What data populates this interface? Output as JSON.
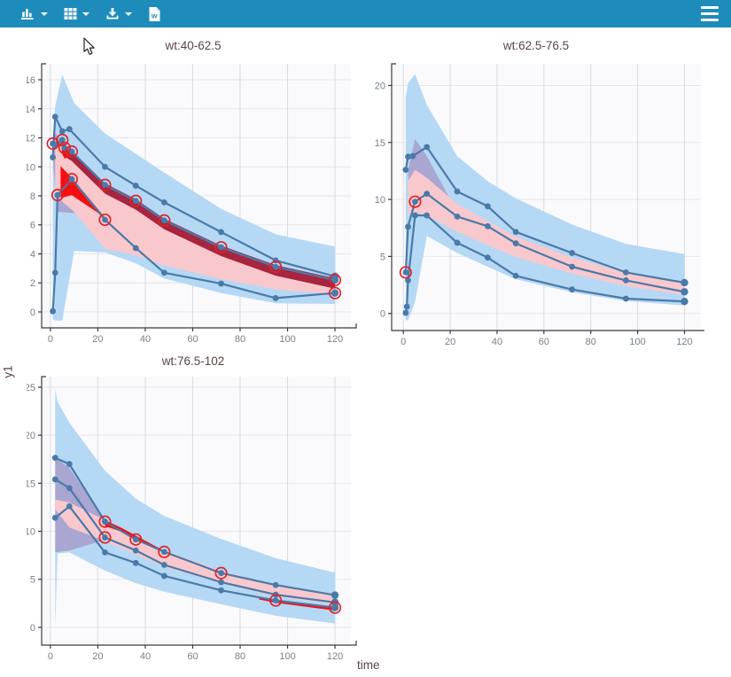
{
  "toolbar": {
    "background": "#1e8cba",
    "buttons": [
      {
        "name": "plot-settings",
        "icon": "bar-chart-icon",
        "has_caret": true
      },
      {
        "name": "table-layout",
        "icon": "grid-icon",
        "has_caret": true
      },
      {
        "name": "download",
        "icon": "download-icon",
        "has_caret": true
      },
      {
        "name": "export-word",
        "icon": "word-file-icon",
        "has_caret": false
      }
    ],
    "menu": {
      "icon": "hamburger-icon"
    }
  },
  "axis_labels": {
    "x": "time",
    "y": "y1"
  },
  "palette": {
    "sim_band_blue": "#b5d8f5",
    "overlap_band_lavender": "#a9a6d2",
    "median_band_pink": "#f9c8cd",
    "obs_median_ci_crimson": "#a8243f",
    "outlier_red": "#f60d10",
    "line_blue": "#4a7aa8",
    "outlier_circle_red": "#e02228",
    "panel_bg": "#fafafd",
    "grid_v": "#d9dae0",
    "grid_h": "#e6e6eb",
    "axis_line": "#3b3b3b",
    "tick_label": "#74808c"
  },
  "chart_data": [
    {
      "type": "line",
      "title": "wt:40-62.5",
      "xlabel": "time",
      "ylabel": "y1",
      "xlim": [
        -3.7,
        126.7
      ],
      "ylim": [
        -1.1,
        17.1
      ],
      "xticks": [
        0,
        20,
        40,
        60,
        80,
        100,
        120
      ],
      "yticks": [
        0,
        2,
        4,
        6,
        8,
        10,
        12,
        14,
        16
      ],
      "bands": [
        {
          "name": "sim-outer-band",
          "color": "#b5d8f5",
          "x": [
            1,
            2,
            5,
            10,
            23,
            36,
            48,
            72,
            95,
            120
          ],
          "hi": [
            11.7,
            14.2,
            16.35,
            14.4,
            12.3,
            10.9,
            9.6,
            7.1,
            5.35,
            4.5
          ],
          "lo": [
            -0.5,
            -0.6,
            -0.6,
            4.2,
            4.1,
            3.35,
            2.3,
            1.3,
            0.6,
            0.55
          ]
        },
        {
          "name": "sim-overlap-band",
          "color": "#a9a6d2",
          "poly": [
            [
              1,
              12.1
            ],
            [
              2,
              12.35
            ],
            [
              5,
              11.7
            ],
            [
              10,
              10.5
            ],
            [
              20,
              7.3
            ],
            [
              10,
              6.8
            ],
            [
              3,
              6.9
            ],
            [
              1,
              10.5
            ]
          ]
        },
        {
          "name": "sim-median-band",
          "color": "#f9c8cd",
          "x": [
            2,
            5,
            10,
            23,
            36,
            48,
            72,
            95,
            120
          ],
          "hi": [
            11.2,
            11.5,
            10.7,
            8.5,
            7.4,
            6.1,
            4.3,
            3.1,
            2.35
          ],
          "lo": [
            8.2,
            7.6,
            6.9,
            4.35,
            3.9,
            3.2,
            2.25,
            1.55,
            1.2
          ]
        },
        {
          "name": "obs-median-ci-band",
          "color": "#a8243f",
          "x": [
            5,
            6,
            9,
            23,
            36,
            48,
            72,
            95,
            120
          ],
          "hi": [
            11.62,
            11.42,
            11.12,
            8.87,
            7.77,
            6.42,
            4.57,
            3.22,
            2.32
          ],
          "lo": [
            10.9,
            10.7,
            10.4,
            8.15,
            7.05,
            5.7,
            3.85,
            2.5,
            1.6
          ]
        },
        {
          "name": "outlier-area",
          "color": "#f60d10",
          "poly": [
            [
              4.3,
              10.05
            ],
            [
              9,
              9.25
            ],
            [
              23,
              6.5
            ],
            [
              9,
              8.05
            ],
            [
              4.3,
              7.85
            ]
          ]
        },
        {
          "name": "outlier-area",
          "color": "#f60d10",
          "poly": [
            [
              4.8,
              11.55
            ],
            [
              8,
              11.15
            ],
            [
              9,
              10.85
            ],
            [
              6,
              10.55
            ],
            [
              4.8,
              10.95
            ]
          ]
        }
      ],
      "series": [
        {
          "name": "p95-percentile",
          "x": [
            1,
            2,
            5,
            8,
            23,
            36,
            48,
            72,
            95,
            120
          ],
          "y": [
            10.65,
            13.45,
            12.45,
            12.6,
            10.0,
            8.7,
            7.55,
            5.5,
            3.55,
            2.45
          ]
        },
        {
          "name": "p50-percentile",
          "x": [
            1,
            2,
            5,
            6,
            9,
            23,
            36,
            48,
            72,
            95,
            120
          ],
          "y": [
            11.6,
            11.5,
            11.85,
            11.3,
            11.05,
            8.75,
            7.65,
            6.3,
            4.45,
            3.1,
            2.2
          ]
        },
        {
          "name": "p5-percentile",
          "x": [
            1,
            2,
            3,
            9,
            23,
            36,
            48,
            72,
            95,
            120
          ],
          "y": [
            0.05,
            2.7,
            8.05,
            9.15,
            6.35,
            4.4,
            2.7,
            1.95,
            0.95,
            1.3
          ]
        }
      ],
      "outlier_circles": [
        [
          1,
          11.6
        ],
        [
          5,
          11.85
        ],
        [
          6,
          11.3
        ],
        [
          9,
          11.05
        ],
        [
          3,
          8.05
        ],
        [
          9,
          9.15
        ],
        [
          23,
          8.75
        ],
        [
          23,
          6.35
        ],
        [
          36,
          7.65
        ],
        [
          48,
          6.3
        ],
        [
          72,
          4.45
        ],
        [
          95,
          3.1
        ],
        [
          120,
          2.2
        ],
        [
          120,
          1.3
        ]
      ]
    },
    {
      "type": "line",
      "title": "wt:62.5-76.5",
      "xlabel": "time",
      "ylabel": "y1",
      "xlim": [
        -5,
        127
      ],
      "ylim": [
        -1.5,
        21.9
      ],
      "xticks": [
        0,
        20,
        40,
        60,
        80,
        100,
        120
      ],
      "yticks": [
        0,
        5,
        10,
        15,
        20
      ],
      "bands": [
        {
          "name": "sim-outer-band",
          "color": "#b5d8f5",
          "x": [
            1,
            2,
            5,
            10,
            23,
            36,
            48,
            72,
            95,
            120
          ],
          "hi": [
            19.0,
            20.2,
            21.0,
            18.3,
            13.8,
            11.6,
            10.1,
            7.8,
            6.1,
            5.2
          ],
          "lo": [
            -0.6,
            -0.6,
            1.0,
            6.8,
            5.3,
            4.1,
            3.0,
            1.85,
            1.1,
            0.7
          ]
        },
        {
          "name": "sim-overlap-band",
          "color": "#a9a6d2",
          "poly": [
            [
              2,
              12.6
            ],
            [
              5,
              15.3
            ],
            [
              10,
              13.8
            ],
            [
              23,
              8.9
            ],
            [
              10,
              8.6
            ],
            [
              3,
              9.3
            ]
          ]
        },
        {
          "name": "sim-median-band",
          "color": "#f9c8cd",
          "x": [
            2,
            5,
            10,
            23,
            36,
            48,
            72,
            95,
            120
          ],
          "hi": [
            11.6,
            12.6,
            11.9,
            9.6,
            8.1,
            6.75,
            4.9,
            3.6,
            2.6
          ],
          "lo": [
            8.6,
            8.9,
            8.6,
            7.15,
            6.0,
            4.95,
            3.5,
            2.4,
            1.6
          ]
        }
      ],
      "series": [
        {
          "name": "p95-percentile",
          "x": [
            1,
            2,
            4,
            10,
            23,
            36,
            48,
            72,
            95,
            120
          ],
          "y": [
            12.6,
            13.75,
            13.8,
            14.6,
            10.7,
            9.4,
            7.15,
            5.3,
            3.6,
            2.7
          ]
        },
        {
          "name": "p50-percentile",
          "x": [
            1,
            2,
            5,
            10,
            23,
            36,
            48,
            72,
            95,
            120
          ],
          "y": [
            3.6,
            7.6,
            9.8,
            10.5,
            8.5,
            7.65,
            6.15,
            4.1,
            2.9,
            1.9
          ]
        },
        {
          "name": "p5-percentile",
          "x": [
            1,
            1.5,
            2,
            5,
            10,
            23,
            36,
            48,
            72,
            95,
            120
          ],
          "y": [
            0.05,
            0.6,
            2.9,
            8.6,
            8.6,
            6.2,
            4.9,
            3.3,
            2.1,
            1.3,
            1.05
          ]
        }
      ],
      "outlier_circles": [
        [
          1,
          3.6
        ],
        [
          5,
          9.8
        ]
      ]
    },
    {
      "type": "line",
      "title": "wt:76.5-102",
      "xlabel": "time",
      "ylabel": "y1",
      "xlim": [
        -3.7,
        126.7
      ],
      "ylim": [
        -1.85,
        26.1
      ],
      "xticks": [
        0,
        20,
        40,
        60,
        80,
        100,
        120
      ],
      "yticks": [
        0,
        5,
        10,
        15,
        20,
        25
      ],
      "bands": [
        {
          "name": "sim-outer-band",
          "color": "#b5d8f5",
          "x": [
            2,
            3,
            8,
            23,
            36,
            48,
            72,
            95,
            120
          ],
          "hi": [
            24.8,
            23.5,
            21.3,
            16.3,
            13.4,
            11.6,
            9.2,
            7.2,
            5.7
          ],
          "lo": [
            0.0,
            7.7,
            7.8,
            5.9,
            4.6,
            3.7,
            2.4,
            1.2,
            0.4
          ]
        },
        {
          "name": "sim-overlap-band",
          "color": "#a9a6d2",
          "poly": [
            [
              2,
              17.7
            ],
            [
              8,
              16.6
            ],
            [
              23,
              11.1
            ],
            [
              23,
              9.1
            ],
            [
              8,
              8.0
            ],
            [
              2,
              7.8
            ]
          ]
        },
        {
          "name": "sim-median-band",
          "color": "#f9c8cd",
          "x": [
            2,
            8,
            23,
            36,
            48,
            72,
            95,
            120
          ],
          "hi": [
            13.3,
            13.0,
            11.15,
            9.3,
            8.0,
            5.9,
            4.4,
            3.5
          ],
          "lo": [
            12.3,
            10.4,
            9.0,
            7.6,
            6.3,
            4.6,
            3.2,
            2.4
          ]
        },
        {
          "name": "outlier-area",
          "color": "#f60d10",
          "poly": [
            [
              23,
              11.15
            ],
            [
              30,
              10.35
            ],
            [
              48,
              7.95
            ],
            [
              48,
              7.8
            ],
            [
              30,
              9.95
            ],
            [
              23,
              10.55
            ]
          ]
        },
        {
          "name": "outlier-area",
          "color": "#f60d10",
          "poly": [
            [
              88,
              3.1
            ],
            [
              95,
              2.9
            ],
            [
              120,
              2.15
            ],
            [
              120,
              1.75
            ],
            [
              95,
              2.55
            ],
            [
              88,
              2.9
            ]
          ]
        }
      ],
      "series": [
        {
          "name": "p95-percentile",
          "x": [
            2,
            8,
            23,
            36,
            48,
            72,
            95,
            120
          ],
          "y": [
            17.65,
            17.0,
            11.0,
            9.15,
            7.85,
            5.65,
            4.4,
            3.35
          ]
        },
        {
          "name": "p50-percentile",
          "x": [
            2,
            8,
            23,
            36,
            48,
            72,
            95,
            120
          ],
          "y": [
            15.4,
            14.5,
            9.35,
            8.0,
            6.5,
            4.7,
            3.4,
            2.6
          ]
        },
        {
          "name": "p5-percentile",
          "x": [
            2,
            8,
            23,
            36,
            48,
            72,
            95,
            120
          ],
          "y": [
            11.4,
            12.6,
            7.8,
            6.7,
            5.35,
            3.85,
            2.8,
            2.05
          ]
        }
      ],
      "outlier_circles": [
        [
          23,
          11.0
        ],
        [
          23,
          9.35
        ],
        [
          36,
          9.15
        ],
        [
          48,
          7.85
        ],
        [
          72,
          5.65
        ],
        [
          95,
          2.8
        ],
        [
          120,
          2.05
        ]
      ]
    }
  ]
}
